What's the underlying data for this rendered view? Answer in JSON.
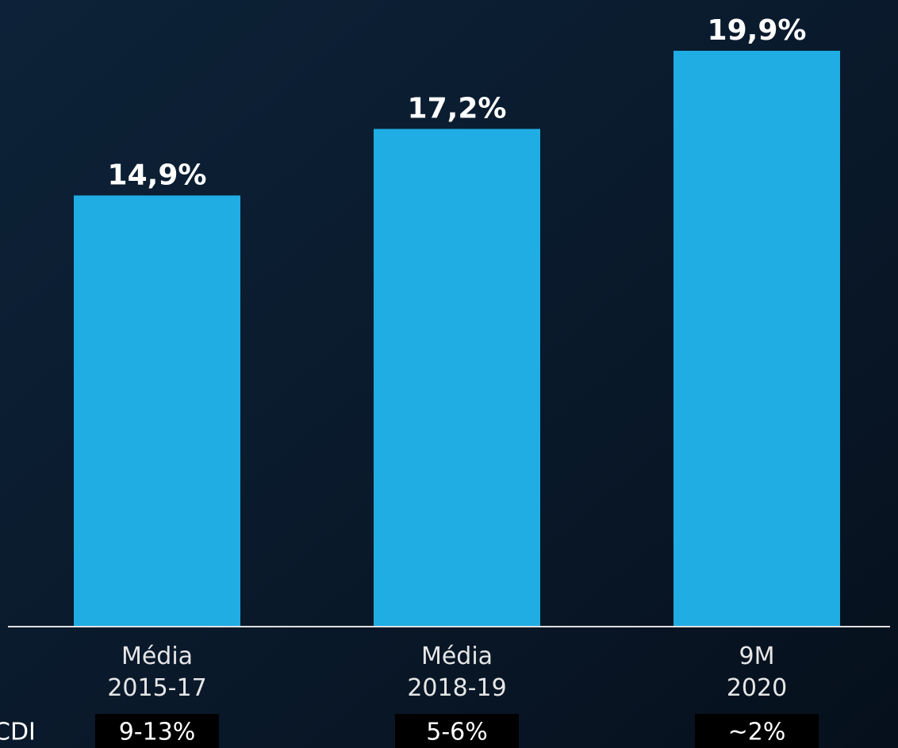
{
  "chart_data": {
    "type": "bar",
    "categories": [
      "Média\n2015-17",
      "Média\n2018-19",
      "9M\n2020"
    ],
    "values": [
      14.9,
      17.2,
      19.9
    ],
    "value_labels": [
      "14,9%",
      "17,2%",
      "19,9%"
    ],
    "color": "#1fade4",
    "ylim": [
      0,
      21.6
    ],
    "cdi_row": {
      "label": "CDI",
      "values": [
        "9-13%",
        "5-6%",
        "~2%"
      ]
    }
  }
}
